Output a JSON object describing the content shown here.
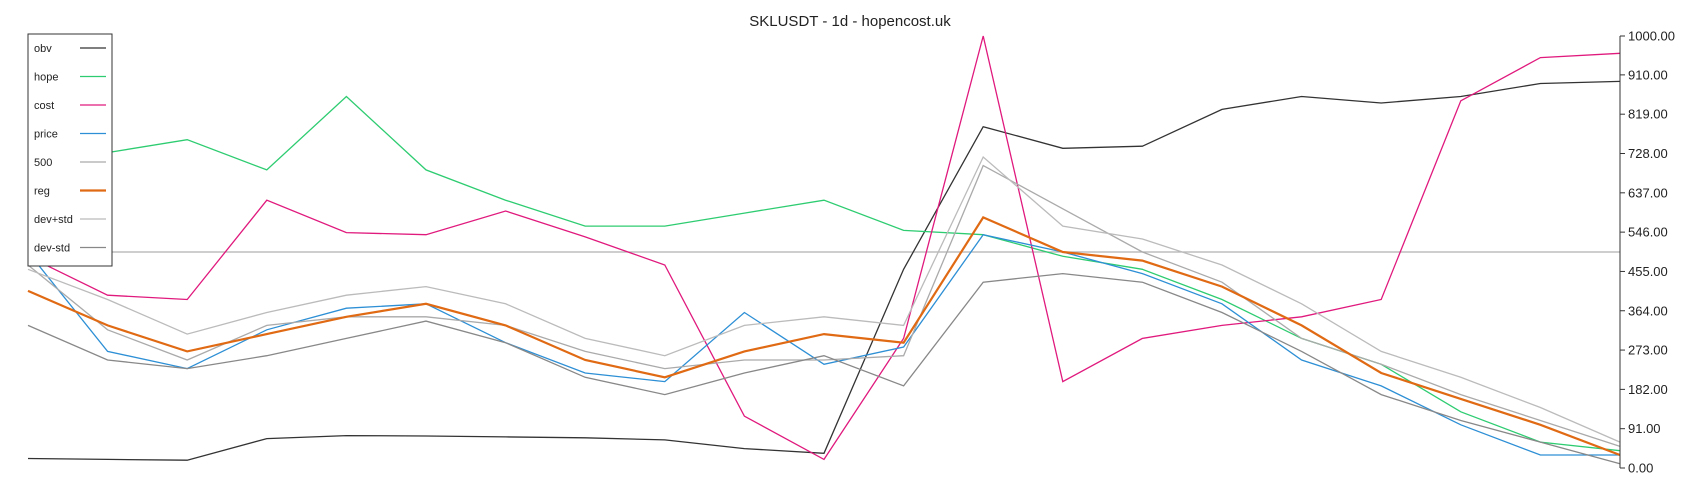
{
  "chart_data": {
    "type": "line",
    "title": "SKLUSDT - 1d - hopencost.uk",
    "ylim": [
      0,
      1000
    ],
    "y_ticks": [
      "0.00",
      "91.00",
      "182.00",
      "273.00",
      "364.00",
      "455.00",
      "546.00",
      "637.00",
      "728.00",
      "819.00",
      "910.00",
      "1000.00"
    ],
    "y_tick_values": [
      0,
      91,
      182,
      273,
      364,
      455,
      546,
      637,
      728,
      819,
      910,
      1000
    ],
    "x": [
      0,
      15,
      30,
      45,
      60,
      75,
      90,
      105,
      120,
      135,
      150,
      165,
      180,
      195,
      210,
      225,
      240,
      255,
      270,
      285,
      300
    ],
    "legend_position": "top-left",
    "grid": false,
    "hline_value": 500,
    "series": [
      {
        "name": "obv",
        "color": "#333333",
        "values": [
          22,
          20,
          18,
          68,
          75,
          74,
          72,
          70,
          65,
          45,
          34,
          460,
          790,
          740,
          745,
          830,
          860,
          845,
          860,
          890,
          895
        ]
      },
      {
        "name": "hope",
        "color": "#2ecc71",
        "values": [
          800,
          730,
          760,
          690,
          860,
          690,
          620,
          560,
          560,
          590,
          620,
          550,
          540,
          490,
          460,
          390,
          300,
          240,
          130,
          60,
          40
        ]
      },
      {
        "name": "cost",
        "color": "#e0197d",
        "values": [
          490,
          400,
          390,
          620,
          545,
          540,
          595,
          535,
          470,
          120,
          20,
          300,
          1000,
          200,
          300,
          330,
          350,
          390,
          850,
          950,
          960
        ]
      },
      {
        "name": "price",
        "color": "#2d8fd5",
        "values": [
          500,
          270,
          230,
          320,
          370,
          380,
          290,
          220,
          200,
          360,
          240,
          280,
          540,
          500,
          450,
          380,
          250,
          190,
          100,
          30,
          30
        ]
      },
      {
        "name": "500",
        "color": "#aaaaaa",
        "values": [
          470,
          320,
          250,
          330,
          350,
          350,
          330,
          270,
          230,
          250,
          250,
          260,
          700,
          600,
          500,
          430,
          300,
          240,
          170,
          110,
          50
        ]
      },
      {
        "name": "reg",
        "color": "#e06a14",
        "values": [
          410,
          330,
          270,
          310,
          350,
          380,
          330,
          250,
          210,
          270,
          310,
          290,
          580,
          500,
          480,
          420,
          330,
          220,
          160,
          100,
          30
        ]
      },
      {
        "name": "dev+std",
        "color": "#bbbbbb",
        "values": [
          460,
          390,
          310,
          360,
          400,
          420,
          380,
          300,
          260,
          330,
          350,
          330,
          720,
          560,
          530,
          470,
          380,
          270,
          210,
          140,
          60
        ]
      },
      {
        "name": "dev-std",
        "color": "#888888",
        "values": [
          330,
          250,
          230,
          260,
          300,
          340,
          290,
          210,
          170,
          220,
          260,
          190,
          430,
          450,
          430,
          360,
          270,
          170,
          110,
          60,
          10
        ]
      }
    ]
  }
}
